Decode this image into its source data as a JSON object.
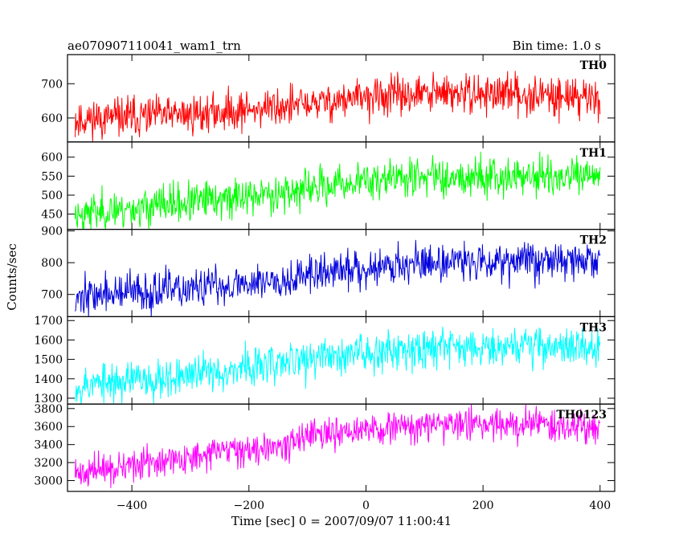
{
  "header": {
    "title": "ae070907110041_wam1_trn",
    "bin_time": "Bin time: 1.0 s"
  },
  "axes": {
    "xlabel": "Time [sec] 0 = 2007/09/07 11:00:41",
    "ylabel": "Counts/sec"
  },
  "chart_data": {
    "type": "line",
    "title": "ae070907110041_wam1_trn",
    "subtitle": "Bin time: 1.0 s",
    "xlabel": "Time [sec] 0 = 2007/09/07 11:00:41",
    "ylabel": "Counts/sec",
    "xlim": [
      -510,
      425
    ],
    "x_ticks": [
      -400,
      -200,
      0,
      200,
      400
    ],
    "x_tick_labels": [
      "−400",
      "−200",
      "0",
      "200",
      "400"
    ],
    "x_sample": {
      "start": -497,
      "end": 400,
      "step": 1
    },
    "grid": false,
    "legend": "none",
    "panels": [
      {
        "name": "TH0",
        "color": "#ff0000",
        "ylim": [
          530,
          785
        ],
        "y_ticks": [
          600,
          700
        ],
        "y_tick_labels": [
          "600",
          "700"
        ],
        "trend": {
          "x": [
            -497,
            -300,
            -100,
            0,
            100,
            250,
            400
          ],
          "y": [
            595,
            610,
            640,
            660,
            670,
            670,
            660
          ]
        },
        "noise_sd": 28,
        "seed": 11
      },
      {
        "name": "TH1",
        "color": "#00ff00",
        "ylim": [
          410,
          640
        ],
        "y_ticks": [
          450,
          500,
          550,
          600
        ],
        "y_tick_labels": [
          "450",
          "500",
          "550",
          "600"
        ],
        "trend": {
          "x": [
            -497,
            -300,
            -100,
            0,
            100,
            250,
            400
          ],
          "y": [
            450,
            480,
            515,
            540,
            550,
            550,
            545
          ]
        },
        "noise_sd": 25,
        "seed": 23
      },
      {
        "name": "TH2",
        "color": "#0000dd",
        "ylim": [
          630,
          905
        ],
        "y_ticks": [
          700,
          800,
          900
        ],
        "y_tick_labels": [
          "700",
          "800",
          "900"
        ],
        "trend": {
          "x": [
            -497,
            -300,
            -100,
            0,
            100,
            250,
            400
          ],
          "y": [
            695,
            715,
            760,
            785,
            800,
            810,
            805
          ]
        },
        "noise_sd": 30,
        "seed": 37
      },
      {
        "name": "TH3",
        "color": "#00ffff",
        "ylim": [
          1270,
          1720
        ],
        "y_ticks": [
          1300,
          1400,
          1500,
          1600,
          1700
        ],
        "y_tick_labels": [
          "1300",
          "1400",
          "1500",
          "1600",
          "1700"
        ],
        "trend": {
          "x": [
            -497,
            -300,
            -100,
            0,
            100,
            250,
            400
          ],
          "y": [
            1365,
            1420,
            1500,
            1540,
            1565,
            1575,
            1560
          ]
        },
        "noise_sd": 50,
        "seed": 53
      },
      {
        "name": "TH0123",
        "color": "#ff00ff",
        "ylim": [
          2880,
          3850
        ],
        "y_ticks": [
          3000,
          3200,
          3400,
          3600,
          3800
        ],
        "y_tick_labels": [
          "3000",
          "3200",
          "3400",
          "3600",
          "3800"
        ],
        "trend": {
          "x": [
            -497,
            -300,
            -100,
            0,
            100,
            250,
            400
          ],
          "y": [
            3080,
            3250,
            3470,
            3560,
            3610,
            3640,
            3600
          ]
        },
        "noise_sd": 85,
        "seed": 71
      }
    ]
  }
}
